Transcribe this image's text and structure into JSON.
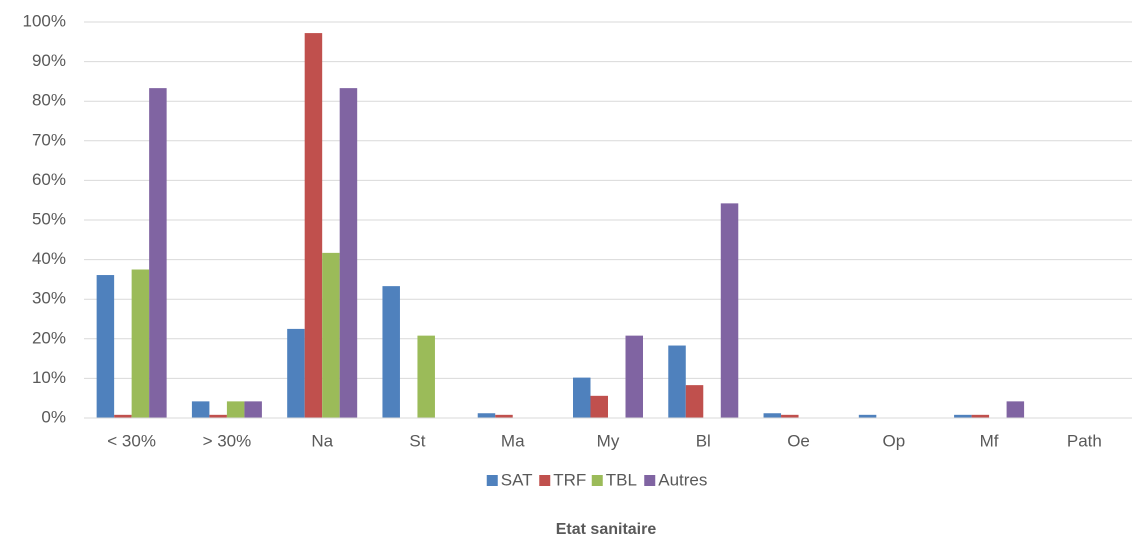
{
  "chart_data": {
    "type": "bar",
    "x_label": "Etat sanitaire",
    "categories": [
      "< 30%",
      "> 30%",
      "Na",
      "St",
      "Ma",
      "My",
      "Bl",
      "Oe",
      "Op",
      "Mf",
      "Path"
    ],
    "series": [
      {
        "name": "SAT",
        "color": "#4f81bd",
        "values": [
          36.1,
          4.2,
          22.5,
          33.3,
          1.2,
          10.2,
          18.3,
          1.2,
          0.8,
          0.8,
          0
        ]
      },
      {
        "name": "TRF",
        "color": "#c0504d",
        "values": [
          0.8,
          0.8,
          97.2,
          0,
          0.8,
          5.6,
          8.3,
          0.8,
          0,
          0.8,
          0
        ]
      },
      {
        "name": "TBL",
        "color": "#9bbb59",
        "values": [
          37.5,
          4.2,
          41.7,
          20.8,
          0,
          0,
          0,
          0,
          0,
          0,
          0
        ]
      },
      {
        "name": "Autres",
        "color": "#8064a2",
        "values": [
          83.3,
          4.2,
          83.3,
          0,
          0,
          20.8,
          54.2,
          0,
          0,
          4.2,
          0
        ]
      }
    ],
    "ylim": [
      0,
      100
    ],
    "yticks": [
      {
        "value": 0,
        "label": "0%"
      },
      {
        "value": 10,
        "label": "10%"
      },
      {
        "value": 20,
        "label": "20%"
      },
      {
        "value": 30,
        "label": "30%"
      },
      {
        "value": 40,
        "label": "40%"
      },
      {
        "value": 50,
        "label": "50%"
      },
      {
        "value": 60,
        "label": "60%"
      },
      {
        "value": 70,
        "label": "70%"
      },
      {
        "value": 80,
        "label": "80%"
      },
      {
        "value": 90,
        "label": "90%"
      },
      {
        "value": 100,
        "label": "100%"
      }
    ],
    "grid": true,
    "legend": "bottom"
  }
}
